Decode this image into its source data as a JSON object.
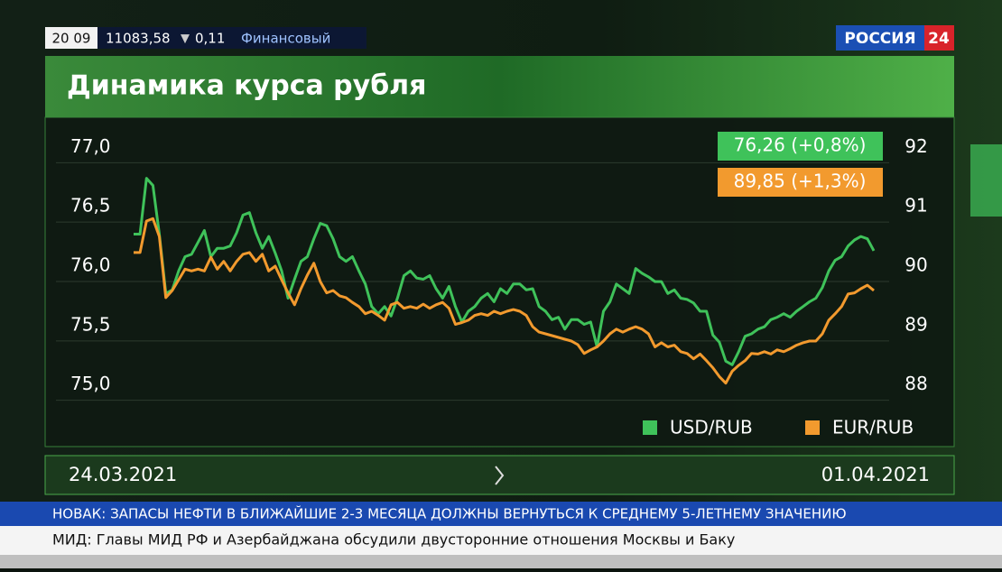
{
  "broadcast": {
    "clock": "20 09",
    "index_value": "11083,58",
    "index_arrow": "▼",
    "index_change": "0,11",
    "index_name": "Финансовый",
    "logo_text": "РОССИЯ",
    "logo_number": "24"
  },
  "chart_data": {
    "type": "line",
    "title": "Динамика курса рубля",
    "date_start": "24.03.2021",
    "date_end": "01.04.2021",
    "badges": [
      {
        "text": "76,26 (+0,8%)",
        "color": "#3fc25a"
      },
      {
        "text": "89,85 (+1,3%)",
        "color": "#f29a2e"
      }
    ],
    "ylim": [
      74.8,
      77.2
    ],
    "yticks": [
      {
        "value": 75,
        "label": "75,0"
      },
      {
        "value": 75.5,
        "label": "75,5"
      },
      {
        "value": 76,
        "label": "76,0"
      },
      {
        "value": 76.5,
        "label": "76,5"
      },
      {
        "value": 77,
        "label": "77,0"
      }
    ],
    "y2lim": [
      87.6,
      92.4
    ],
    "y2ticks": [
      88,
      89,
      90,
      91,
      92
    ],
    "grid": true,
    "series": [
      {
        "name": "USD/RUB",
        "color": "#3fc25a",
        "values": [
          76.27,
          76.27,
          76.74,
          76.68,
          76.27,
          75.77,
          75.8,
          75.96,
          76.08,
          76.1,
          76.2,
          76.3,
          76.08,
          76.15,
          76.15,
          76.17,
          76.28,
          76.43,
          76.45,
          76.28,
          76.15,
          76.25,
          76.11,
          75.96,
          75.73,
          75.89,
          76.04,
          76.08,
          76.23,
          76.36,
          76.34,
          76.23,
          76.08,
          76.04,
          76.08,
          75.96,
          75.85,
          75.66,
          75.6,
          75.66,
          75.58,
          75.73,
          75.92,
          75.96,
          75.9,
          75.89,
          75.92,
          75.81,
          75.73,
          75.83,
          75.66,
          75.53,
          75.62,
          75.66,
          75.73,
          75.77,
          75.7,
          75.81,
          75.77,
          75.85,
          75.85,
          75.8,
          75.81,
          75.66,
          75.62,
          75.55,
          75.57,
          75.47,
          75.55,
          75.55,
          75.51,
          75.53,
          75.32,
          75.62,
          75.7,
          75.85,
          75.81,
          75.77,
          75.98,
          75.94,
          75.91,
          75.87,
          75.87,
          75.77,
          75.8,
          75.73,
          75.72,
          75.69,
          75.62,
          75.62,
          75.42,
          75.36,
          75.2,
          75.17,
          75.28,
          75.41,
          75.43,
          75.47,
          75.49,
          75.55,
          75.57,
          75.6,
          75.57,
          75.62,
          75.66,
          75.7,
          75.73,
          75.82,
          75.96,
          76.05,
          76.08,
          76.17,
          76.22,
          76.25,
          76.23,
          76.13
        ]
      },
      {
        "name": "EUR/RUB",
        "color": "#f29a2e",
        "axis": "y2",
        "values": [
          90.23,
          90.23,
          90.76,
          90.8,
          90.5,
          89.47,
          89.59,
          89.77,
          89.95,
          89.92,
          89.95,
          89.92,
          90.15,
          89.95,
          90.08,
          89.92,
          90.08,
          90.2,
          90.23,
          90.08,
          90.2,
          89.92,
          90.0,
          89.77,
          89.55,
          89.35,
          89.62,
          89.85,
          90.05,
          89.74,
          89.55,
          89.59,
          89.5,
          89.47,
          89.39,
          89.32,
          89.2,
          89.24,
          89.17,
          89.09,
          89.35,
          89.39,
          89.29,
          89.32,
          89.29,
          89.36,
          89.29,
          89.35,
          89.39,
          89.29,
          89.02,
          89.05,
          89.09,
          89.17,
          89.2,
          89.17,
          89.24,
          89.2,
          89.24,
          89.27,
          89.24,
          89.17,
          88.98,
          88.89,
          88.86,
          88.83,
          88.8,
          88.77,
          88.74,
          88.68,
          88.53,
          88.59,
          88.64,
          88.74,
          88.86,
          88.94,
          88.89,
          88.94,
          88.98,
          88.94,
          88.86,
          88.64,
          88.71,
          88.64,
          88.67,
          88.56,
          88.53,
          88.44,
          88.52,
          88.41,
          88.29,
          88.14,
          88.03,
          88.23,
          88.33,
          88.41,
          88.53,
          88.52,
          88.56,
          88.52,
          88.59,
          88.56,
          88.61,
          88.67,
          88.71,
          88.74,
          88.74,
          88.86,
          89.09,
          89.2,
          89.32,
          89.53,
          89.55,
          89.62,
          89.68,
          89.59
        ]
      }
    ]
  },
  "ticker": {
    "headline": "НОВАК: ЗАПАСЫ НЕФТИ В БЛИЖАЙШИЕ 2-3 МЕСЯЦА ДОЛЖНЫ ВЕРНУТЬСЯ К СРЕДНЕМУ 5-ЛЕТНЕМУ ЗНАЧЕНИЮ",
    "news": "МИД: Главы МИД РФ и Азербайджана обсудили двусторонние отношения Москвы и Баку"
  }
}
